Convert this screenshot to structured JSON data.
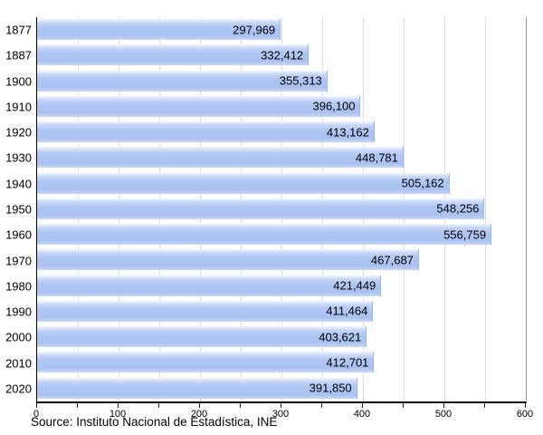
{
  "chart_data": {
    "type": "bar",
    "orientation": "horizontal",
    "title": "",
    "xlabel": "",
    "ylabel": "",
    "categories": [
      "1877",
      "1887",
      "1900",
      "1910",
      "1920",
      "1930",
      "1940",
      "1950",
      "1960",
      "1970",
      "1980",
      "1990",
      "2000",
      "2010",
      "2020"
    ],
    "values": [
      297969,
      332412,
      355313,
      396100,
      413162,
      448781,
      505162,
      548256,
      556759,
      467687,
      421449,
      411464,
      403621,
      412701,
      391850
    ],
    "value_labels": [
      "297,969",
      "332,412",
      "355,313",
      "396,100",
      "413,162",
      "448,781",
      "505,162",
      "548,256",
      "556,759",
      "467,687",
      "421,449",
      "411,464",
      "403,621",
      "412,701",
      "391,850"
    ],
    "xlim": [
      0,
      600
    ],
    "x_axis_unit": "thousands",
    "x_tick_labels": [
      "0",
      "100",
      "200",
      "300",
      "400",
      "500",
      "600"
    ],
    "x_major_tick_step": 100,
    "x_minor_tick_step": 50,
    "grid": true,
    "legend": "none",
    "source": "Source: Instituto Nacional de Estadística, INE",
    "colors": {
      "bar_fill": "#aec6f3",
      "bar_fill_highlight": "#f1f6fe",
      "bar_border": "#9cb6ea",
      "gridline": "#dddddd",
      "axis": "#000000",
      "plot_right_border": "#999999",
      "text": "#000000"
    }
  }
}
